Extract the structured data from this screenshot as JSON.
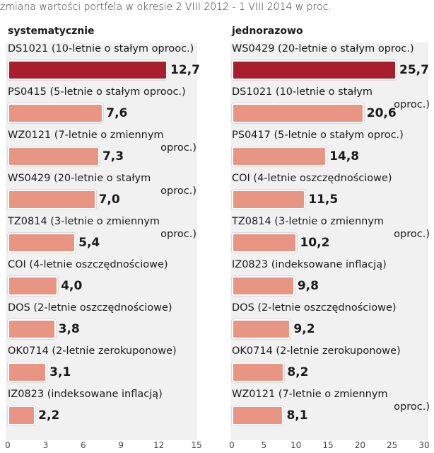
{
  "subtitle": "zmiana wartości portfela w okresie 2 VIII 2012 - 1 VIII 2014 w proc.",
  "colors": {
    "highlight": "#a81e2d",
    "bar": "#e89584",
    "panel": "#f1f1f1"
  },
  "chart_data": [
    {
      "type": "bar",
      "orientation": "horizontal",
      "title": "systematycznie",
      "xlim": [
        0,
        15
      ],
      "ticks": [
        "0",
        "3",
        "6",
        "9",
        "12",
        "15"
      ],
      "grid": false,
      "highlight_index": 0,
      "items": [
        {
          "label": "DS1021 (10-letnie o stałym oprooc.)",
          "cont": "",
          "value": 12.7,
          "value_label": "12,7"
        },
        {
          "label": "PS0415 (5-letnie o stałym oprooc.)",
          "cont": "",
          "value": 7.6,
          "value_label": "7,6"
        },
        {
          "label": "WZ0121 (7-letnie o zmiennym",
          "cont": "oproc.)",
          "value": 7.3,
          "value_label": "7,3"
        },
        {
          "label": "WS0429 (20-letnie o stałym",
          "cont": "oproc.)",
          "value": 7.0,
          "value_label": "7,0"
        },
        {
          "label": "TZ0814 (3-letnie o zmiennym",
          "cont": "oproc.)",
          "value": 5.4,
          "value_label": "5,4"
        },
        {
          "label": "COI (4-letnie oszczędnościowe)",
          "cont": "",
          "value": 4.0,
          "value_label": "4,0"
        },
        {
          "label": "DOS (2-letnie oszczędnościowe)",
          "cont": "",
          "value": 3.8,
          "value_label": "3,8"
        },
        {
          "label": "OK0714 (2-letnie zerokuponowe)",
          "cont": "",
          "value": 3.1,
          "value_label": "3,1"
        },
        {
          "label": "IZ0823 (indeksowane inflacją)",
          "cont": "",
          "value": 2.2,
          "value_label": "2,2"
        }
      ]
    },
    {
      "type": "bar",
      "orientation": "horizontal",
      "title": "jednorazowo",
      "xlim": [
        0,
        30
      ],
      "ticks": [
        "0",
        "5",
        "10",
        "15",
        "20",
        "25",
        "30"
      ],
      "grid": false,
      "highlight_index": 0,
      "items": [
        {
          "label": "WS0429 (20-letnie o stałym oproc.)",
          "cont": "",
          "value": 25.7,
          "value_label": "25,7"
        },
        {
          "label": "DS1021 (10-letnie o stałym",
          "cont": "oproc.)",
          "value": 20.6,
          "value_label": "20,6"
        },
        {
          "label": "PS0417 (5-letnie o stałym oproc.)",
          "cont": "",
          "value": 14.8,
          "value_label": "14,8"
        },
        {
          "label": "COI (4-letnie oszczędnościowe)",
          "cont": "",
          "value": 11.5,
          "value_label": "11,5"
        },
        {
          "label": "TZ0814 (3-letnie o zmiennym",
          "cont": "oproc.)",
          "value": 10.2,
          "value_label": "10,2"
        },
        {
          "label": "IZ0823 (indeksowane inflacją)",
          "cont": "",
          "value": 9.8,
          "value_label": "9,8"
        },
        {
          "label": "DOS (2-letnie oszczędnościowe)",
          "cont": "",
          "value": 9.2,
          "value_label": "9,2"
        },
        {
          "label": "OK0714 (2-letnie zerokuponowe)",
          "cont": "",
          "value": 8.2,
          "value_label": "8,2"
        },
        {
          "label": "WZ0121 (7-letnie o zmiennym",
          "cont": "oproc.)",
          "value": 8.1,
          "value_label": "8,1"
        }
      ]
    }
  ]
}
